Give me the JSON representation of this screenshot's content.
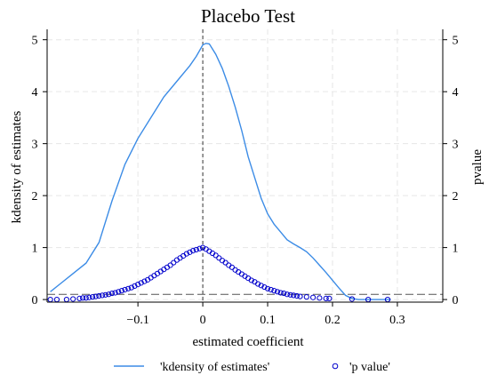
{
  "chart_data": {
    "type": "line",
    "title": "Placebo Test",
    "xlabel": "estimated coefficient",
    "ylabel": "kdensity of estimates",
    "ylabel_right": "pvalue",
    "xlim": [
      -0.24,
      0.37
    ],
    "ylim": [
      -0.05,
      5.2
    ],
    "xticks": [
      -0.1,
      0,
      0.1,
      0.2,
      0.3
    ],
    "xtick_labels": [
      "−0.1",
      "0",
      "0.1",
      "0.2",
      "0.3"
    ],
    "yticks": [
      0,
      1,
      2,
      3,
      4,
      5
    ],
    "ytick_labels": [
      "0",
      "1",
      "2",
      "3",
      "4",
      "5"
    ],
    "grid": true,
    "reference_lines": {
      "vertical_x": 0,
      "horizontal_y": 0.1
    },
    "legend_position": "bottom",
    "series": [
      {
        "name": "'kdensity of estimates'",
        "kind": "line",
        "color": "#3c8ce6",
        "x": [
          -0.235,
          -0.22,
          -0.2,
          -0.18,
          -0.16,
          -0.14,
          -0.12,
          -0.1,
          -0.08,
          -0.06,
          -0.04,
          -0.02,
          -0.01,
          0,
          0.005,
          0.01,
          0.02,
          0.03,
          0.04,
          0.05,
          0.06,
          0.07,
          0.08,
          0.09,
          0.1,
          0.11,
          0.12,
          0.13,
          0.14,
          0.15,
          0.16,
          0.17,
          0.18,
          0.19,
          0.2,
          0.21,
          0.22,
          0.23,
          0.24,
          0.25,
          0.26,
          0.27,
          0.28,
          0.29
        ],
        "y": [
          0.15,
          0.3,
          0.5,
          0.7,
          1.1,
          1.9,
          2.6,
          3.1,
          3.5,
          3.9,
          4.2,
          4.5,
          4.68,
          4.9,
          4.93,
          4.92,
          4.72,
          4.45,
          4.1,
          3.7,
          3.25,
          2.75,
          2.35,
          1.95,
          1.65,
          1.45,
          1.3,
          1.15,
          1.07,
          1.0,
          0.92,
          0.8,
          0.66,
          0.52,
          0.37,
          0.22,
          0.08,
          0.02,
          0.0,
          0.0,
          0.0,
          0.0,
          0.0,
          0.0
        ]
      },
      {
        "name": "'p value'",
        "kind": "scatter",
        "color": "#0000cc",
        "x": [
          -0.235,
          -0.225,
          -0.21,
          -0.2,
          -0.19,
          -0.185,
          -0.18,
          -0.175,
          -0.17,
          -0.165,
          -0.16,
          -0.155,
          -0.15,
          -0.145,
          -0.14,
          -0.135,
          -0.13,
          -0.125,
          -0.12,
          -0.115,
          -0.11,
          -0.105,
          -0.1,
          -0.095,
          -0.09,
          -0.085,
          -0.08,
          -0.075,
          -0.07,
          -0.065,
          -0.06,
          -0.055,
          -0.05,
          -0.045,
          -0.04,
          -0.035,
          -0.03,
          -0.025,
          -0.02,
          -0.015,
          -0.01,
          -0.005,
          0,
          0.005,
          0.01,
          0.015,
          0.02,
          0.025,
          0.03,
          0.035,
          0.04,
          0.045,
          0.05,
          0.055,
          0.06,
          0.065,
          0.07,
          0.075,
          0.08,
          0.085,
          0.09,
          0.095,
          0.1,
          0.105,
          0.11,
          0.115,
          0.12,
          0.125,
          0.13,
          0.135,
          0.14,
          0.145,
          0.15,
          0.16,
          0.17,
          0.18,
          0.19,
          0.195,
          0.23,
          0.255,
          0.285
        ],
        "y": [
          0.0,
          0.0,
          0.0,
          0.01,
          0.02,
          0.03,
          0.03,
          0.04,
          0.05,
          0.06,
          0.07,
          0.08,
          0.09,
          0.1,
          0.12,
          0.13,
          0.15,
          0.17,
          0.19,
          0.21,
          0.23,
          0.26,
          0.29,
          0.32,
          0.35,
          0.38,
          0.42,
          0.46,
          0.5,
          0.54,
          0.58,
          0.62,
          0.66,
          0.71,
          0.76,
          0.8,
          0.84,
          0.88,
          0.91,
          0.94,
          0.96,
          0.98,
          1.0,
          0.97,
          0.93,
          0.89,
          0.85,
          0.8,
          0.75,
          0.71,
          0.66,
          0.62,
          0.57,
          0.53,
          0.49,
          0.45,
          0.41,
          0.37,
          0.34,
          0.3,
          0.27,
          0.24,
          0.21,
          0.19,
          0.17,
          0.15,
          0.13,
          0.12,
          0.1,
          0.09,
          0.08,
          0.07,
          0.06,
          0.05,
          0.04,
          0.03,
          0.02,
          0.02,
          0.01,
          0.0,
          0.0
        ]
      }
    ]
  },
  "legend": {
    "kdensity_label": "'kdensity of estimates'",
    "pvalue_label": "'p value'"
  }
}
